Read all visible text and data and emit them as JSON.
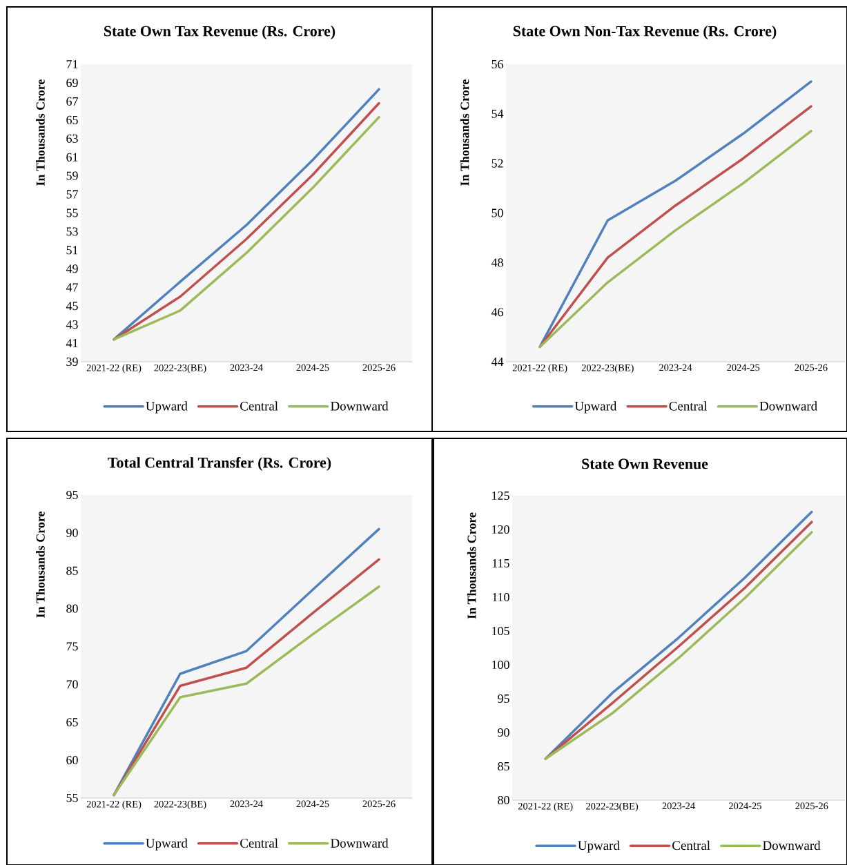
{
  "chart_data": [
    {
      "type": "line",
      "title": "State Own Tax Revenue (Rs. Crore)",
      "ylabel": "In Thousands Crore",
      "categories": [
        "2021-22 (RE)",
        "2022-23(BE)",
        "2023-24",
        "2024-25",
        "2025-26"
      ],
      "ylim": [
        39,
        71
      ],
      "yticks": [
        39,
        41,
        43,
        45,
        47,
        49,
        51,
        53,
        55,
        57,
        59,
        61,
        63,
        65,
        67,
        69,
        71
      ],
      "legend": "bottom",
      "series": [
        {
          "name": "Upward",
          "color": "#4f81bd",
          "values": [
            41.4,
            47.6,
            53.7,
            60.7,
            68.3
          ]
        },
        {
          "name": "Central",
          "color": "#c0504d",
          "values": [
            41.4,
            46.0,
            52.2,
            59.1,
            66.8
          ]
        },
        {
          "name": "Downward",
          "color": "#9bbb59",
          "values": [
            41.4,
            44.5,
            50.7,
            57.7,
            65.3
          ]
        }
      ]
    },
    {
      "type": "line",
      "title": "State Own Non-Tax Revenue (Rs. Crore)",
      "ylabel": "In Thousands Crore",
      "categories": [
        "2021-22 (RE)",
        "2022-23(BE)",
        "2023-24",
        "2024-25",
        "2025-26"
      ],
      "ylim": [
        44,
        56
      ],
      "yticks": [
        44,
        46,
        48,
        50,
        52,
        54,
        56
      ],
      "legend": "bottom",
      "series": [
        {
          "name": "Upward",
          "color": "#4f81bd",
          "values": [
            44.6,
            49.7,
            51.3,
            53.2,
            55.3
          ]
        },
        {
          "name": "Central",
          "color": "#c0504d",
          "values": [
            44.6,
            48.2,
            50.3,
            52.2,
            54.3
          ]
        },
        {
          "name": "Downward",
          "color": "#9bbb59",
          "values": [
            44.6,
            47.2,
            49.3,
            51.2,
            53.3
          ]
        }
      ]
    },
    {
      "type": "line",
      "title": "Total Central Transfer (Rs. Crore)",
      "ylabel": "In Thousands Crore",
      "categories": [
        "2021-22 (RE)",
        "2022-23(BE)",
        "2023-24",
        "2024-25",
        "2025-26"
      ],
      "ylim": [
        55,
        95
      ],
      "yticks": [
        55,
        60,
        65,
        70,
        75,
        80,
        85,
        90,
        95
      ],
      "legend": "bottom",
      "series": [
        {
          "name": "Upward",
          "color": "#4f81bd",
          "values": [
            55.4,
            71.4,
            74.4,
            82.5,
            90.5
          ]
        },
        {
          "name": "Central",
          "color": "#c0504d",
          "values": [
            55.4,
            69.8,
            72.2,
            79.4,
            86.5
          ]
        },
        {
          "name": "Downward",
          "color": "#9bbb59",
          "values": [
            55.4,
            68.3,
            70.1,
            76.6,
            82.9
          ]
        }
      ]
    },
    {
      "type": "line",
      "title": "State Own Revenue",
      "ylabel": "In Thousands Crore",
      "categories": [
        "2021-22 (RE)",
        "2022-23(BE)",
        "2023-24",
        "2024-25",
        "2025-26"
      ],
      "ylim": [
        80,
        125
      ],
      "yticks": [
        80,
        85,
        90,
        95,
        100,
        105,
        110,
        115,
        120,
        125
      ],
      "legend": "bottom",
      "series": [
        {
          "name": "Upward",
          "color": "#4f81bd",
          "values": [
            86.1,
            95.8,
            104.0,
            112.9,
            122.6
          ]
        },
        {
          "name": "Central",
          "color": "#c0504d",
          "values": [
            86.1,
            94.3,
            102.7,
            111.4,
            121.1
          ]
        },
        {
          "name": "Downward",
          "color": "#9bbb59",
          "values": [
            86.1,
            92.8,
            101.0,
            109.9,
            119.6
          ]
        }
      ]
    }
  ]
}
